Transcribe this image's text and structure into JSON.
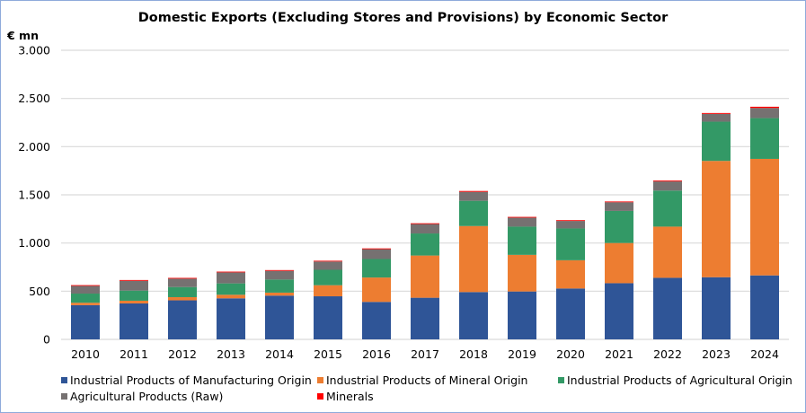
{
  "chart_data": {
    "type": "bar",
    "stacked": true,
    "title": "Domestic Exports (Excluding Stores and Provisions) by Economic Sector",
    "ylabel": "€ mn",
    "xlabel": "",
    "ylim": [
      0,
      3000
    ],
    "yticks": [
      0,
      500,
      1000,
      1500,
      2000,
      2500,
      3000
    ],
    "ytick_labels": [
      "0",
      "500",
      "1.000",
      "1.500",
      "2.000",
      "2.500",
      "3.000"
    ],
    "grid": true,
    "legend_position": "bottom",
    "categories": [
      "2010",
      "2011",
      "2012",
      "2013",
      "2014",
      "2015",
      "2016",
      "2017",
      "2018",
      "2019",
      "2020",
      "2021",
      "2022",
      "2023",
      "2024"
    ],
    "series": [
      {
        "name": "Industrial Products of Manufacturing Origin",
        "color": "#2f5597",
        "values": [
          355,
          373,
          405,
          426,
          454,
          447,
          389,
          432,
          491,
          497,
          528,
          583,
          639,
          645,
          664
        ]
      },
      {
        "name": "Industrial Products of Mineral Origin",
        "color": "#ed7d31",
        "values": [
          25,
          28,
          33,
          37,
          31,
          115,
          253,
          438,
          685,
          380,
          293,
          417,
          531,
          1207,
          1209
        ]
      },
      {
        "name": "Industrial Products of Agricultural Origin",
        "color": "#339966",
        "values": [
          95,
          105,
          105,
          118,
          136,
          160,
          192,
          229,
          262,
          293,
          330,
          333,
          374,
          407,
          423
        ]
      },
      {
        "name": "Agricultural Products (Raw)",
        "color": "#767171",
        "values": [
          80,
          102,
          87,
          114,
          90,
          86,
          102,
          98,
          93,
          93,
          78,
          90,
          95,
          81,
          105
        ]
      },
      {
        "name": "Minerals",
        "color": "#ff0000",
        "values": [
          8,
          8,
          8,
          8,
          8,
          8,
          8,
          8,
          9,
          8,
          8,
          8,
          9,
          9,
          13
        ]
      }
    ]
  }
}
